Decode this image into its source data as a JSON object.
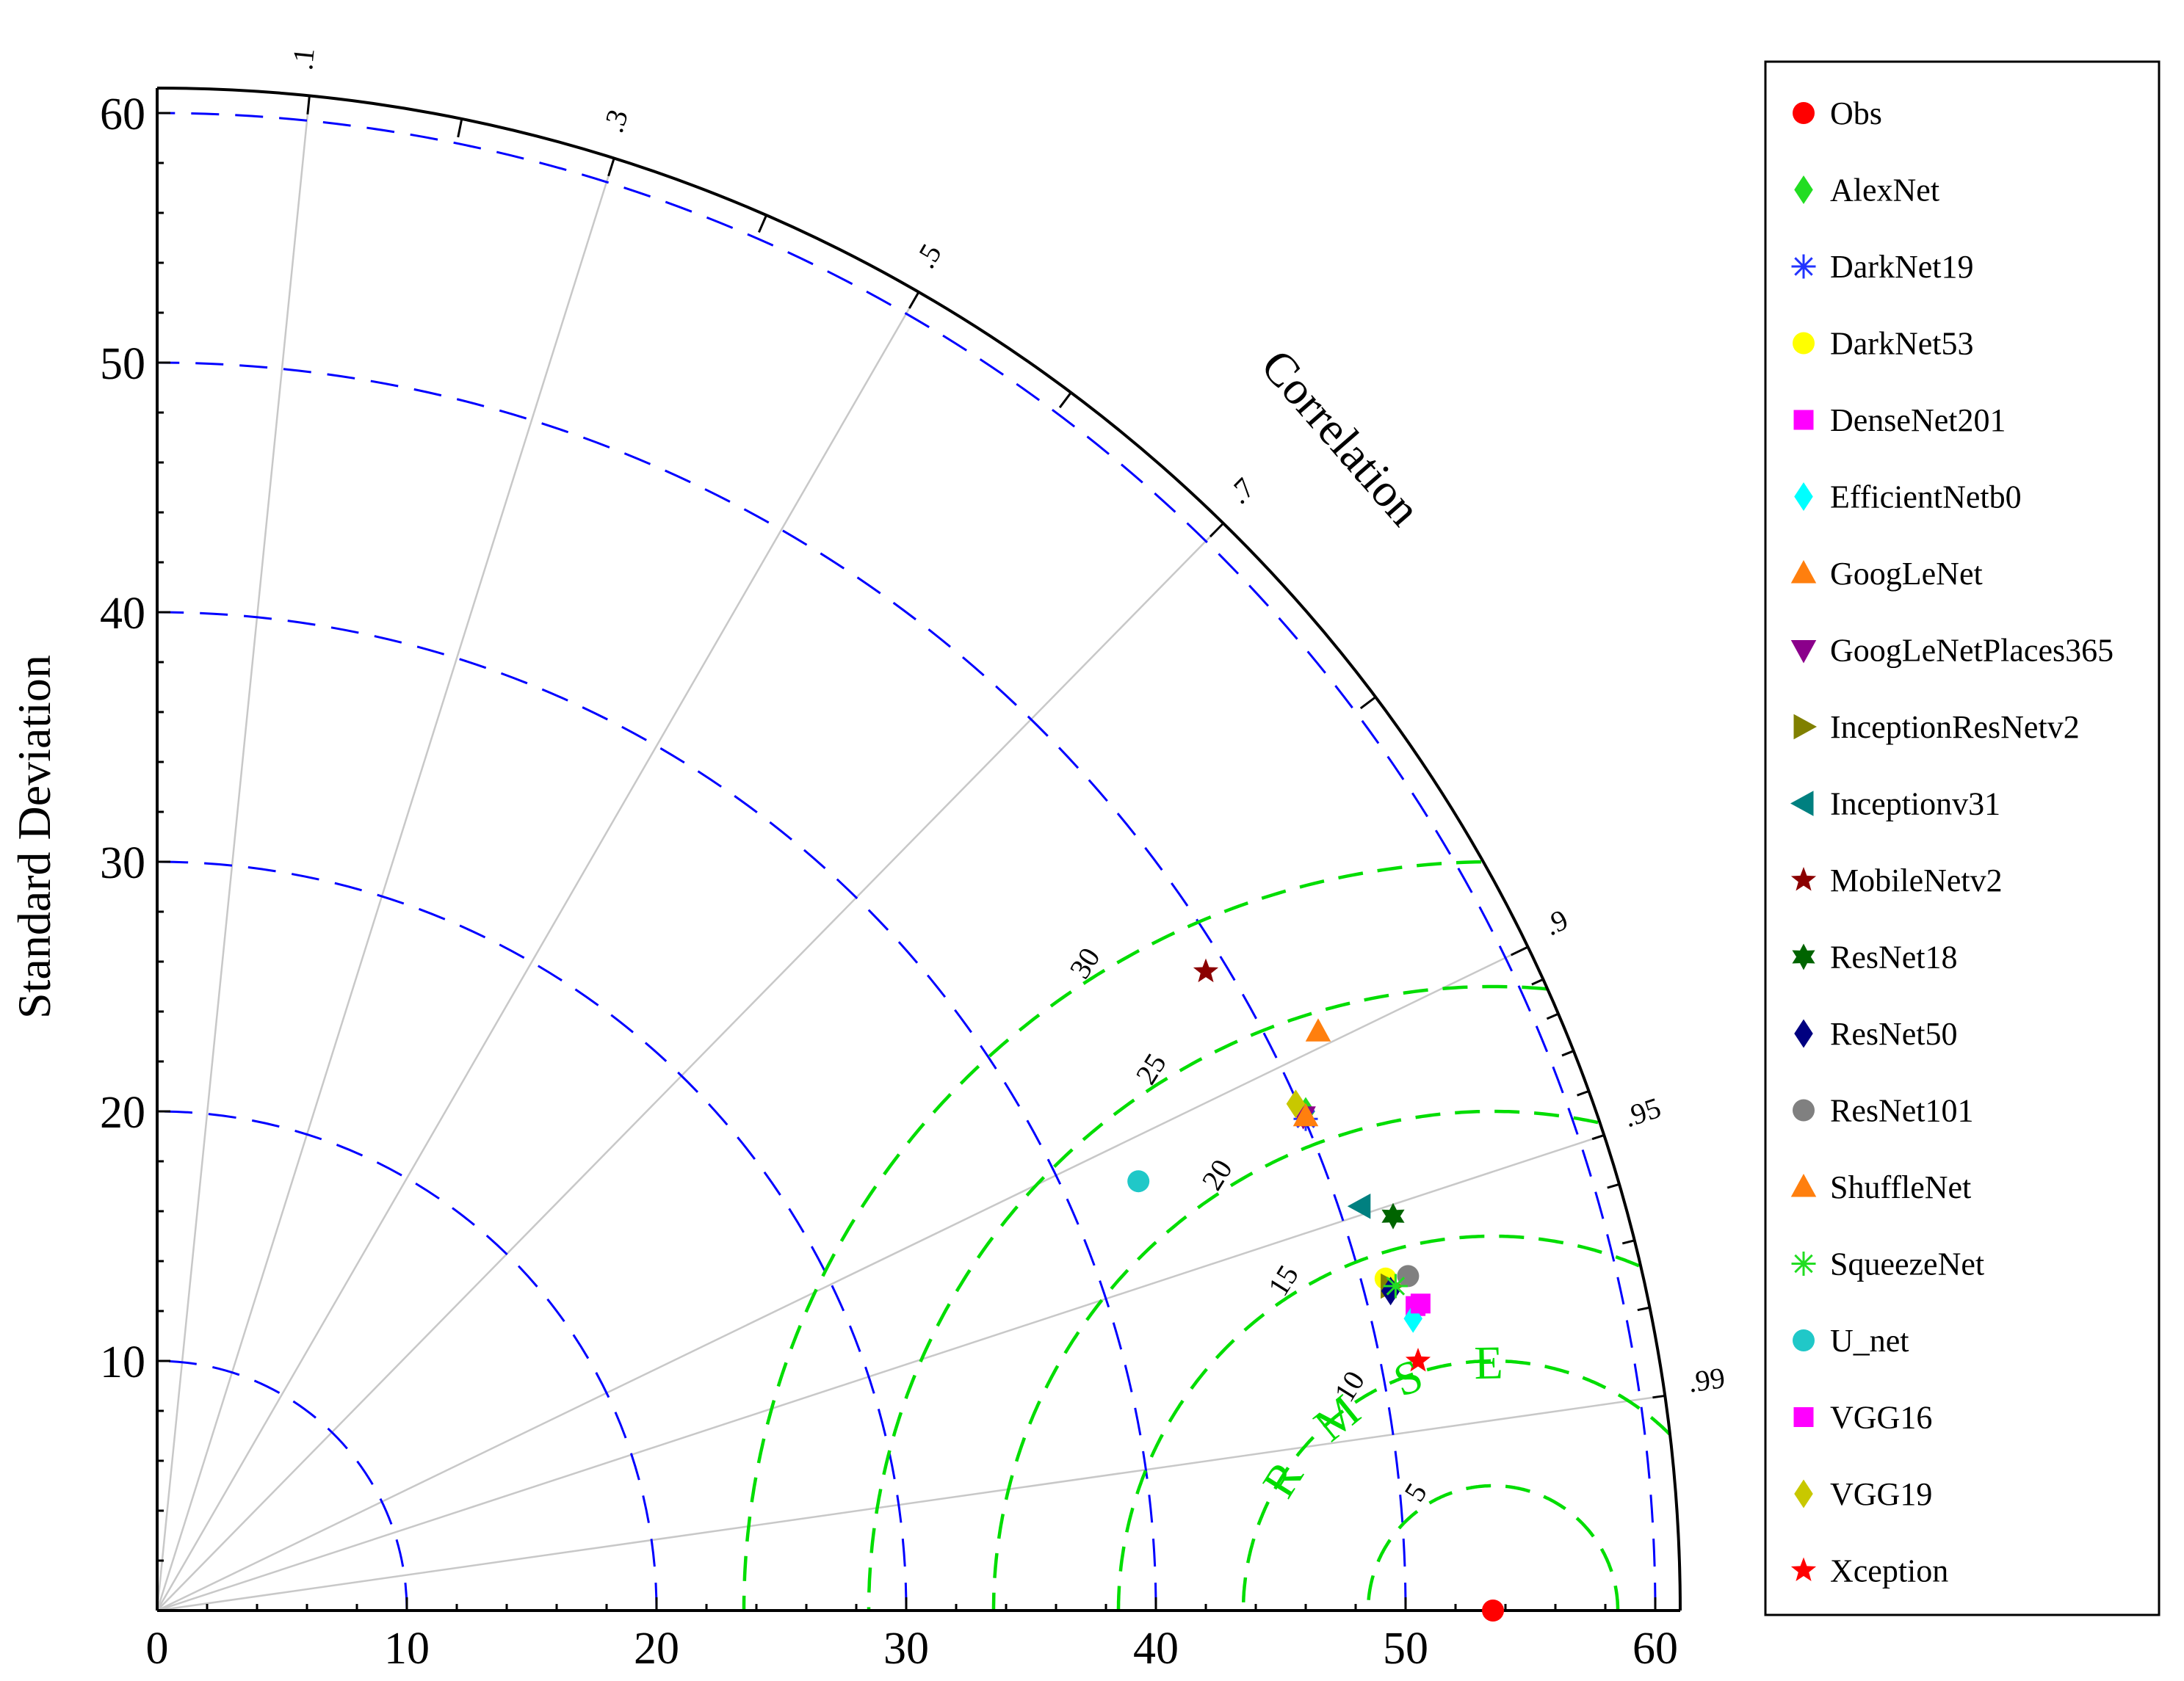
{
  "chart_data": {
    "type": "taylor-diagram",
    "xlabel": "",
    "ylabel": "Standard Deviation",
    "arc_label": "Correlation",
    "rmse_label": "RMSE",
    "std_range": [
      0,
      61
    ],
    "std_ticks": [
      0,
      10,
      20,
      30,
      40,
      50,
      60
    ],
    "std_contours": [
      10,
      20,
      30,
      40,
      50,
      60
    ],
    "correlation_ticks": [
      0.1,
      0.3,
      0.5,
      0.7,
      0.9,
      0.95,
      0.99
    ],
    "rmse_ref_std": 53.5,
    "rmse_contours": [
      5,
      10,
      15,
      20,
      25,
      30
    ],
    "grid": true,
    "legend_position": "right",
    "colors": {
      "std_contour": "#0000ff",
      "rmse_contour": "#00dd00",
      "correlation_ray": "#c8c8c8"
    },
    "series": [
      {
        "name": "Obs",
        "marker": "circle",
        "color": "#ff0000",
        "x": 53.5,
        "y": 0
      },
      {
        "name": "AlexNet",
        "marker": "diamond",
        "color": "#22dd22",
        "x": 46.0,
        "y": 20.0
      },
      {
        "name": "DarkNet19",
        "marker": "asterisk",
        "color": "#2233ff",
        "x": 46.0,
        "y": 19.7
      },
      {
        "name": "DarkNet53",
        "marker": "circle",
        "color": "#ffff00",
        "x": 49.2,
        "y": 13.3
      },
      {
        "name": "DenseNet201",
        "marker": "square",
        "color": "#ff00ff",
        "x": 50.4,
        "y": 12.2
      },
      {
        "name": "EfficientNetb0",
        "marker": "diamond",
        "color": "#00ffff",
        "x": 50.3,
        "y": 11.7
      },
      {
        "name": "GoogLeNet",
        "marker": "triangle-up",
        "color": "#ff7f0e",
        "x": 46.5,
        "y": 23.2
      },
      {
        "name": "GoogLeNetPlaces365",
        "marker": "triangle-down",
        "color": "#8b008b",
        "x": 45.9,
        "y": 19.8
      },
      {
        "name": "InceptionResNetv2",
        "marker": "triangle-right",
        "color": "#808000",
        "x": 49.4,
        "y": 13.0
      },
      {
        "name": "Inceptionv31",
        "marker": "triangle-left",
        "color": "#008080",
        "x": 48.2,
        "y": 16.2
      },
      {
        "name": "MobileNetv2",
        "marker": "star",
        "color": "#8b0000",
        "x": 42.0,
        "y": 25.6
      },
      {
        "name": "ResNet18",
        "marker": "hexagram",
        "color": "#006400",
        "x": 49.5,
        "y": 15.8
      },
      {
        "name": "ResNet50",
        "marker": "diamond",
        "color": "#000080",
        "x": 49.4,
        "y": 12.8
      },
      {
        "name": "ResNet101",
        "marker": "circle",
        "color": "#808080",
        "x": 50.1,
        "y": 13.4
      },
      {
        "name": "ShuffleNet",
        "marker": "triangle-up",
        "color": "#ff7f0e",
        "x": 46.0,
        "y": 19.8
      },
      {
        "name": "SqueezeNet",
        "marker": "asterisk",
        "color": "#22dd22",
        "x": 49.6,
        "y": 13.0
      },
      {
        "name": "U_net",
        "marker": "circle",
        "color": "#20c8c8",
        "x": 39.3,
        "y": 17.2
      },
      {
        "name": "VGG16",
        "marker": "square",
        "color": "#ff00ff",
        "x": 50.6,
        "y": 12.3
      },
      {
        "name": "VGG19",
        "marker": "diamond",
        "color": "#c8c800",
        "x": 45.6,
        "y": 20.3
      },
      {
        "name": "Xception",
        "marker": "star",
        "color": "#ff0000",
        "x": 50.5,
        "y": 10.0
      }
    ]
  }
}
